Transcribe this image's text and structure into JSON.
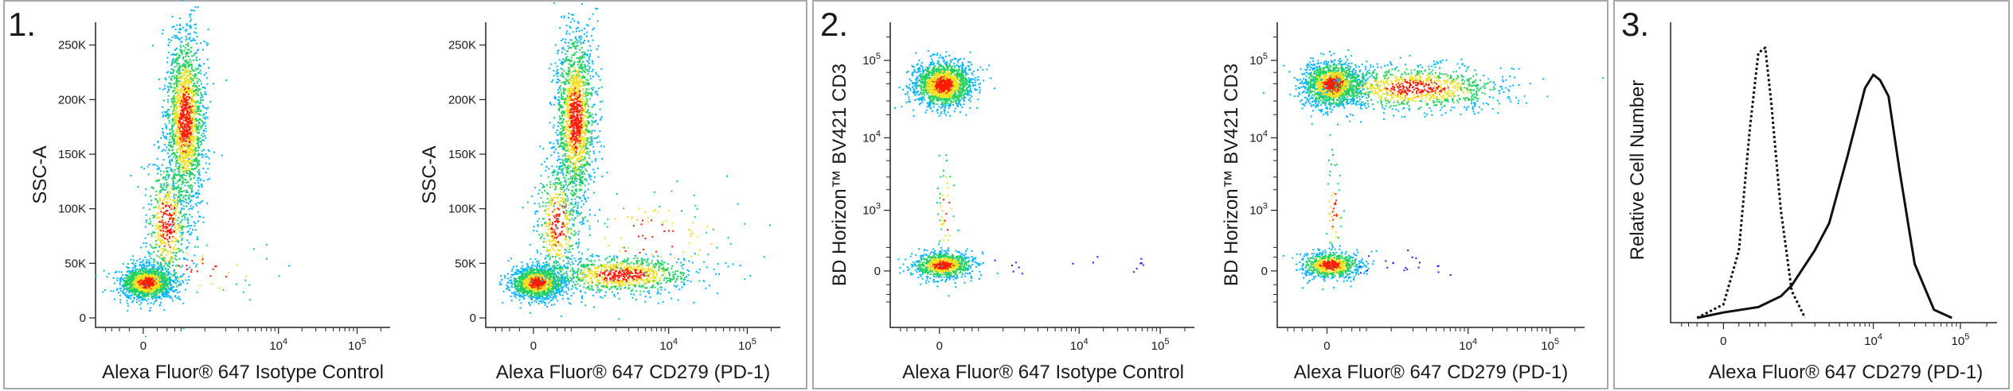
{
  "figure": {
    "panel_labels": [
      "1.",
      "2.",
      "3."
    ]
  },
  "chart_data": [
    {
      "type": "scatter",
      "panel": "1.",
      "xlabel": "Alexa Fluor® 647 Isotype Control",
      "ylabel": "SSC-A",
      "x_scale": "biexponential",
      "x_ticks": [
        "0",
        "10^4",
        "10^5"
      ],
      "y_ticks": [
        "0",
        "50K",
        "100K",
        "150K",
        "200K",
        "250K"
      ],
      "ylim": [
        0,
        262144
      ],
      "colormap": "density (blue-green-yellow-red)",
      "populations": [
        {
          "x_center": 0,
          "y_center": 30000,
          "x_spread": 600,
          "y_spread": 9000,
          "weight": 0.35
        },
        {
          "x_center": 2500,
          "y_center": 170000,
          "x_spread": 900,
          "y_spread": 45000,
          "weight": 0.55
        },
        {
          "x_center": 1500,
          "y_center": 80000,
          "x_spread": 700,
          "y_spread": 30000,
          "weight": 0.1
        }
      ]
    },
    {
      "type": "scatter",
      "panel": "1.",
      "xlabel": "Alexa Fluor® 647 CD279 (PD-1)",
      "ylabel": "SSC-A",
      "x_scale": "biexponential",
      "x_ticks": [
        "0",
        "10^4",
        "10^5"
      ],
      "y_ticks": [
        "0",
        "50K",
        "100K",
        "150K",
        "200K",
        "250K"
      ],
      "ylim": [
        0,
        262144
      ],
      "colormap": "density (blue-green-yellow-red)",
      "populations": [
        {
          "x_center": 0,
          "y_center": 30000,
          "x_spread": 600,
          "y_spread": 9000,
          "weight": 0.3
        },
        {
          "x_center": 2500,
          "y_center": 170000,
          "x_spread": 900,
          "y_spread": 45000,
          "weight": 0.48
        },
        {
          "x_center": 8000,
          "y_center": 35000,
          "x_spread": 6000,
          "y_spread": 12000,
          "weight": 0.22
        }
      ]
    },
    {
      "type": "scatter",
      "panel": "2.",
      "xlabel": "Alexa Fluor® 647 Isotype Control",
      "ylabel": "BD Horizon™ BV421 CD3",
      "x_scale": "biexponential",
      "y_scale": "biexponential",
      "x_ticks": [
        "0",
        "10^4",
        "10^5"
      ],
      "y_ticks": [
        "0",
        "10^3",
        "10^4",
        "10^5"
      ],
      "colormap": "density (blue-green-yellow-red)",
      "populations": [
        {
          "x_center": 0,
          "y_center": 50000,
          "weight": 0.7
        },
        {
          "x_center": 0,
          "y_center": 0,
          "weight": 0.28
        },
        {
          "x_center": 0,
          "y_center": 2000,
          "weight": 0.02
        }
      ]
    },
    {
      "type": "scatter",
      "panel": "2.",
      "xlabel": "Alexa Fluor® 647 CD279 (PD-1)",
      "ylabel": "BD Horizon™ BV421 CD3",
      "x_scale": "biexponential",
      "y_scale": "biexponential",
      "x_ticks": [
        "0",
        "10^4",
        "10^5"
      ],
      "y_ticks": [
        "0",
        "10^3",
        "10^4",
        "10^5"
      ],
      "colormap": "density (blue-green-yellow-red)",
      "populations": [
        {
          "x_center": 0,
          "y_center": 50000,
          "weight": 0.45
        },
        {
          "x_center": 10000,
          "y_center": 50000,
          "weight": 0.27
        },
        {
          "x_center": 0,
          "y_center": 0,
          "weight": 0.26
        },
        {
          "x_center": 0,
          "y_center": 2000,
          "weight": 0.02
        }
      ]
    },
    {
      "type": "line",
      "panel": "3.",
      "xlabel": "Alexa Fluor® 647  CD279 (PD-1)",
      "ylabel": "Relative Cell Number",
      "x_scale": "biexponential",
      "x_ticks": [
        "0",
        "10^4",
        "10^5"
      ],
      "series": [
        {
          "style": "dotted",
          "x": [
            -200,
            0,
            100,
            200,
            300,
            400,
            500,
            700,
            1000,
            1500
          ],
          "y": [
            0.0,
            0.05,
            0.25,
            0.7,
            0.98,
            1.0,
            0.8,
            0.4,
            0.1,
            0.0
          ]
        },
        {
          "style": "solid",
          "x": [
            -200,
            0,
            300,
            700,
            1000,
            2000,
            3000,
            5000,
            8000,
            10000,
            12000,
            15000,
            20000,
            30000,
            50000,
            80000
          ],
          "y": [
            0.0,
            0.02,
            0.04,
            0.08,
            0.12,
            0.25,
            0.35,
            0.6,
            0.85,
            0.9,
            0.88,
            0.82,
            0.55,
            0.2,
            0.03,
            0.0
          ]
        }
      ]
    }
  ]
}
